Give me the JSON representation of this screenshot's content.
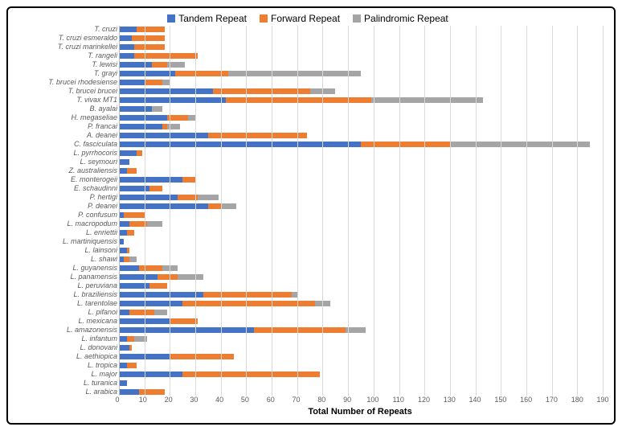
{
  "chart": {
    "type": "horizontal-stacked-bar",
    "x_title": "Total Number of Repeats",
    "x_title_fontsize": 11,
    "x_title_bold": true,
    "xlim": [
      0,
      190
    ],
    "xtick_step": 10,
    "ylabel_fontsize": 9,
    "ylabel_italic": true,
    "grid_color": "#d9d9d9",
    "axis_color": "#bfbfbf",
    "background_color": "#ffffff",
    "frame_border_color": "#000000",
    "frame_border_width": 2,
    "frame_border_radius": 6,
    "legend": [
      {
        "label": "Tandem Repeat",
        "color": "#4472c4"
      },
      {
        "label": "Forward Repeat",
        "color": "#ed7d31"
      },
      {
        "label": "Palindromic Repeat",
        "color": "#a5a5a5"
      }
    ],
    "series_colors": {
      "tandem": "#4472c4",
      "forward": "#ed7d31",
      "palindromic": "#a5a5a5"
    },
    "categories": [
      {
        "label": "T. cruzi",
        "tandem": 7,
        "forward": 11,
        "palindromic": 0
      },
      {
        "label": "T. cruzi esmeraldo",
        "tandem": 5,
        "forward": 13,
        "palindromic": 0
      },
      {
        "label": "T. cruzi marinkellei",
        "tandem": 6,
        "forward": 12,
        "palindromic": 0
      },
      {
        "label": "T. rangeli",
        "tandem": 6,
        "forward": 25,
        "palindromic": 0
      },
      {
        "label": "T. lewisi",
        "tandem": 13,
        "forward": 6,
        "palindromic": 7
      },
      {
        "label": "T. grayi",
        "tandem": 22,
        "forward": 21,
        "palindromic": 52
      },
      {
        "label": "T. brucei rhodesiense",
        "tandem": 10,
        "forward": 7,
        "palindromic": 3
      },
      {
        "label": "T. brucei brucei",
        "tandem": 37,
        "forward": 38,
        "palindromic": 10
      },
      {
        "label": "T. vivax MT1",
        "tandem": 42,
        "forward": 57,
        "palindromic": 44
      },
      {
        "label": "B. ayalai",
        "tandem": 13,
        "forward": 0,
        "palindromic": 4
      },
      {
        "label": "H. megaseliae",
        "tandem": 19,
        "forward": 8,
        "palindromic": 3
      },
      {
        "label": "P. francai",
        "tandem": 17,
        "forward": 2,
        "palindromic": 5
      },
      {
        "label": "A. deanei",
        "tandem": 35,
        "forward": 39,
        "palindromic": 0
      },
      {
        "label": "C. fasciculata",
        "tandem": 95,
        "forward": 35,
        "palindromic": 55
      },
      {
        "label": "L. pyrrhocoris",
        "tandem": 7,
        "forward": 2,
        "palindromic": 0
      },
      {
        "label": "L. seymouri",
        "tandem": 4,
        "forward": 0,
        "palindromic": 0
      },
      {
        "label": "Z. australiensis",
        "tandem": 3,
        "forward": 4,
        "palindromic": 0
      },
      {
        "label": "E. monterogeii",
        "tandem": 25,
        "forward": 5,
        "palindromic": 0
      },
      {
        "label": "E. schaudinni",
        "tandem": 12,
        "forward": 5,
        "palindromic": 0
      },
      {
        "label": "P. hertigi",
        "tandem": 23,
        "forward": 8,
        "palindromic": 8
      },
      {
        "label": "P. deanei",
        "tandem": 35,
        "forward": 5,
        "palindromic": 6
      },
      {
        "label": "P. confusum",
        "tandem": 2,
        "forward": 8,
        "palindromic": 0
      },
      {
        "label": "L. macropodum",
        "tandem": 4,
        "forward": 7,
        "palindromic": 6
      },
      {
        "label": "L. enriettii",
        "tandem": 3,
        "forward": 3,
        "palindromic": 0
      },
      {
        "label": "L. martiniquensis",
        "tandem": 2,
        "forward": 0,
        "palindromic": 0
      },
      {
        "label": "L. lainsoni",
        "tandem": 3,
        "forward": 1,
        "palindromic": 0
      },
      {
        "label": "L. shawi",
        "tandem": 2,
        "forward": 2,
        "palindromic": 3
      },
      {
        "label": "L. guyanensis",
        "tandem": 8,
        "forward": 9,
        "palindromic": 6
      },
      {
        "label": "L. panamensis",
        "tandem": 15,
        "forward": 8,
        "palindromic": 10
      },
      {
        "label": "L. peruviana",
        "tandem": 12,
        "forward": 7,
        "palindromic": 0
      },
      {
        "label": "L. braziliensis",
        "tandem": 33,
        "forward": 35,
        "palindromic": 2
      },
      {
        "label": "L. tarentolae",
        "tandem": 25,
        "forward": 52,
        "palindromic": 6
      },
      {
        "label": "L. pifanoi",
        "tandem": 4,
        "forward": 10,
        "palindromic": 5
      },
      {
        "label": "L. mexicana",
        "tandem": 20,
        "forward": 11,
        "palindromic": 0
      },
      {
        "label": "L. amazonensis",
        "tandem": 53,
        "forward": 36,
        "palindromic": 8
      },
      {
        "label": "L. infantum",
        "tandem": 3,
        "forward": 3,
        "palindromic": 5
      },
      {
        "label": "L. donovani",
        "tandem": 4,
        "forward": 1,
        "palindromic": 0
      },
      {
        "label": "L. aethiopica",
        "tandem": 20,
        "forward": 25,
        "palindromic": 0
      },
      {
        "label": "L. tropica",
        "tandem": 3,
        "forward": 4,
        "palindromic": 0
      },
      {
        "label": "L. major",
        "tandem": 25,
        "forward": 54,
        "palindromic": 0
      },
      {
        "label": "L. turanica",
        "tandem": 3,
        "forward": 0,
        "palindromic": 0
      },
      {
        "label": "L. arabica",
        "tandem": 8,
        "forward": 10,
        "palindromic": 0
      }
    ]
  }
}
